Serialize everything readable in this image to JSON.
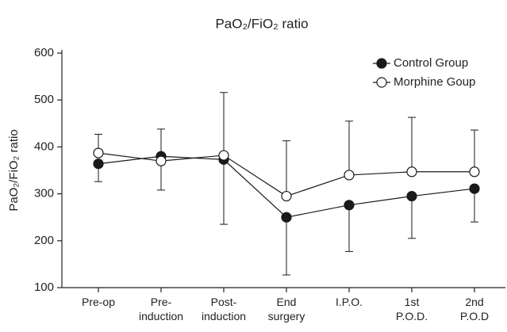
{
  "chart_data": {
    "type": "line",
    "title": "PaO₂/FiO₂ ratio",
    "y_label": "PaO₂/FiO₂ ratio",
    "categories": [
      "Pre-op",
      "Pre-\ninduction",
      "Post-\ninduction",
      "End\nsurgery",
      "I.P.O.",
      "1st\nP.O.D.",
      "2nd\nP.O.D"
    ],
    "series": [
      {
        "name": "Control Group",
        "color": "#1a1a1a",
        "marker_fill": "#1a1a1a",
        "error_side": "below",
        "values": [
          364,
          380,
          373,
          250,
          276,
          295,
          311
        ],
        "errors": [
          38,
          72,
          138,
          123,
          99,
          90,
          71
        ]
      },
      {
        "name": "Morphine Goup",
        "color": "#1a1a1a",
        "marker_fill": "#ffffff",
        "error_side": "above",
        "values": [
          387,
          370,
          382,
          295,
          340,
          347,
          347
        ],
        "errors": [
          40,
          68,
          134,
          118,
          115,
          116,
          89
        ]
      }
    ],
    "ylim": [
      100,
      600
    ],
    "yticks": [
      100,
      200,
      300,
      400,
      500,
      600
    ],
    "legend": "upper right"
  }
}
